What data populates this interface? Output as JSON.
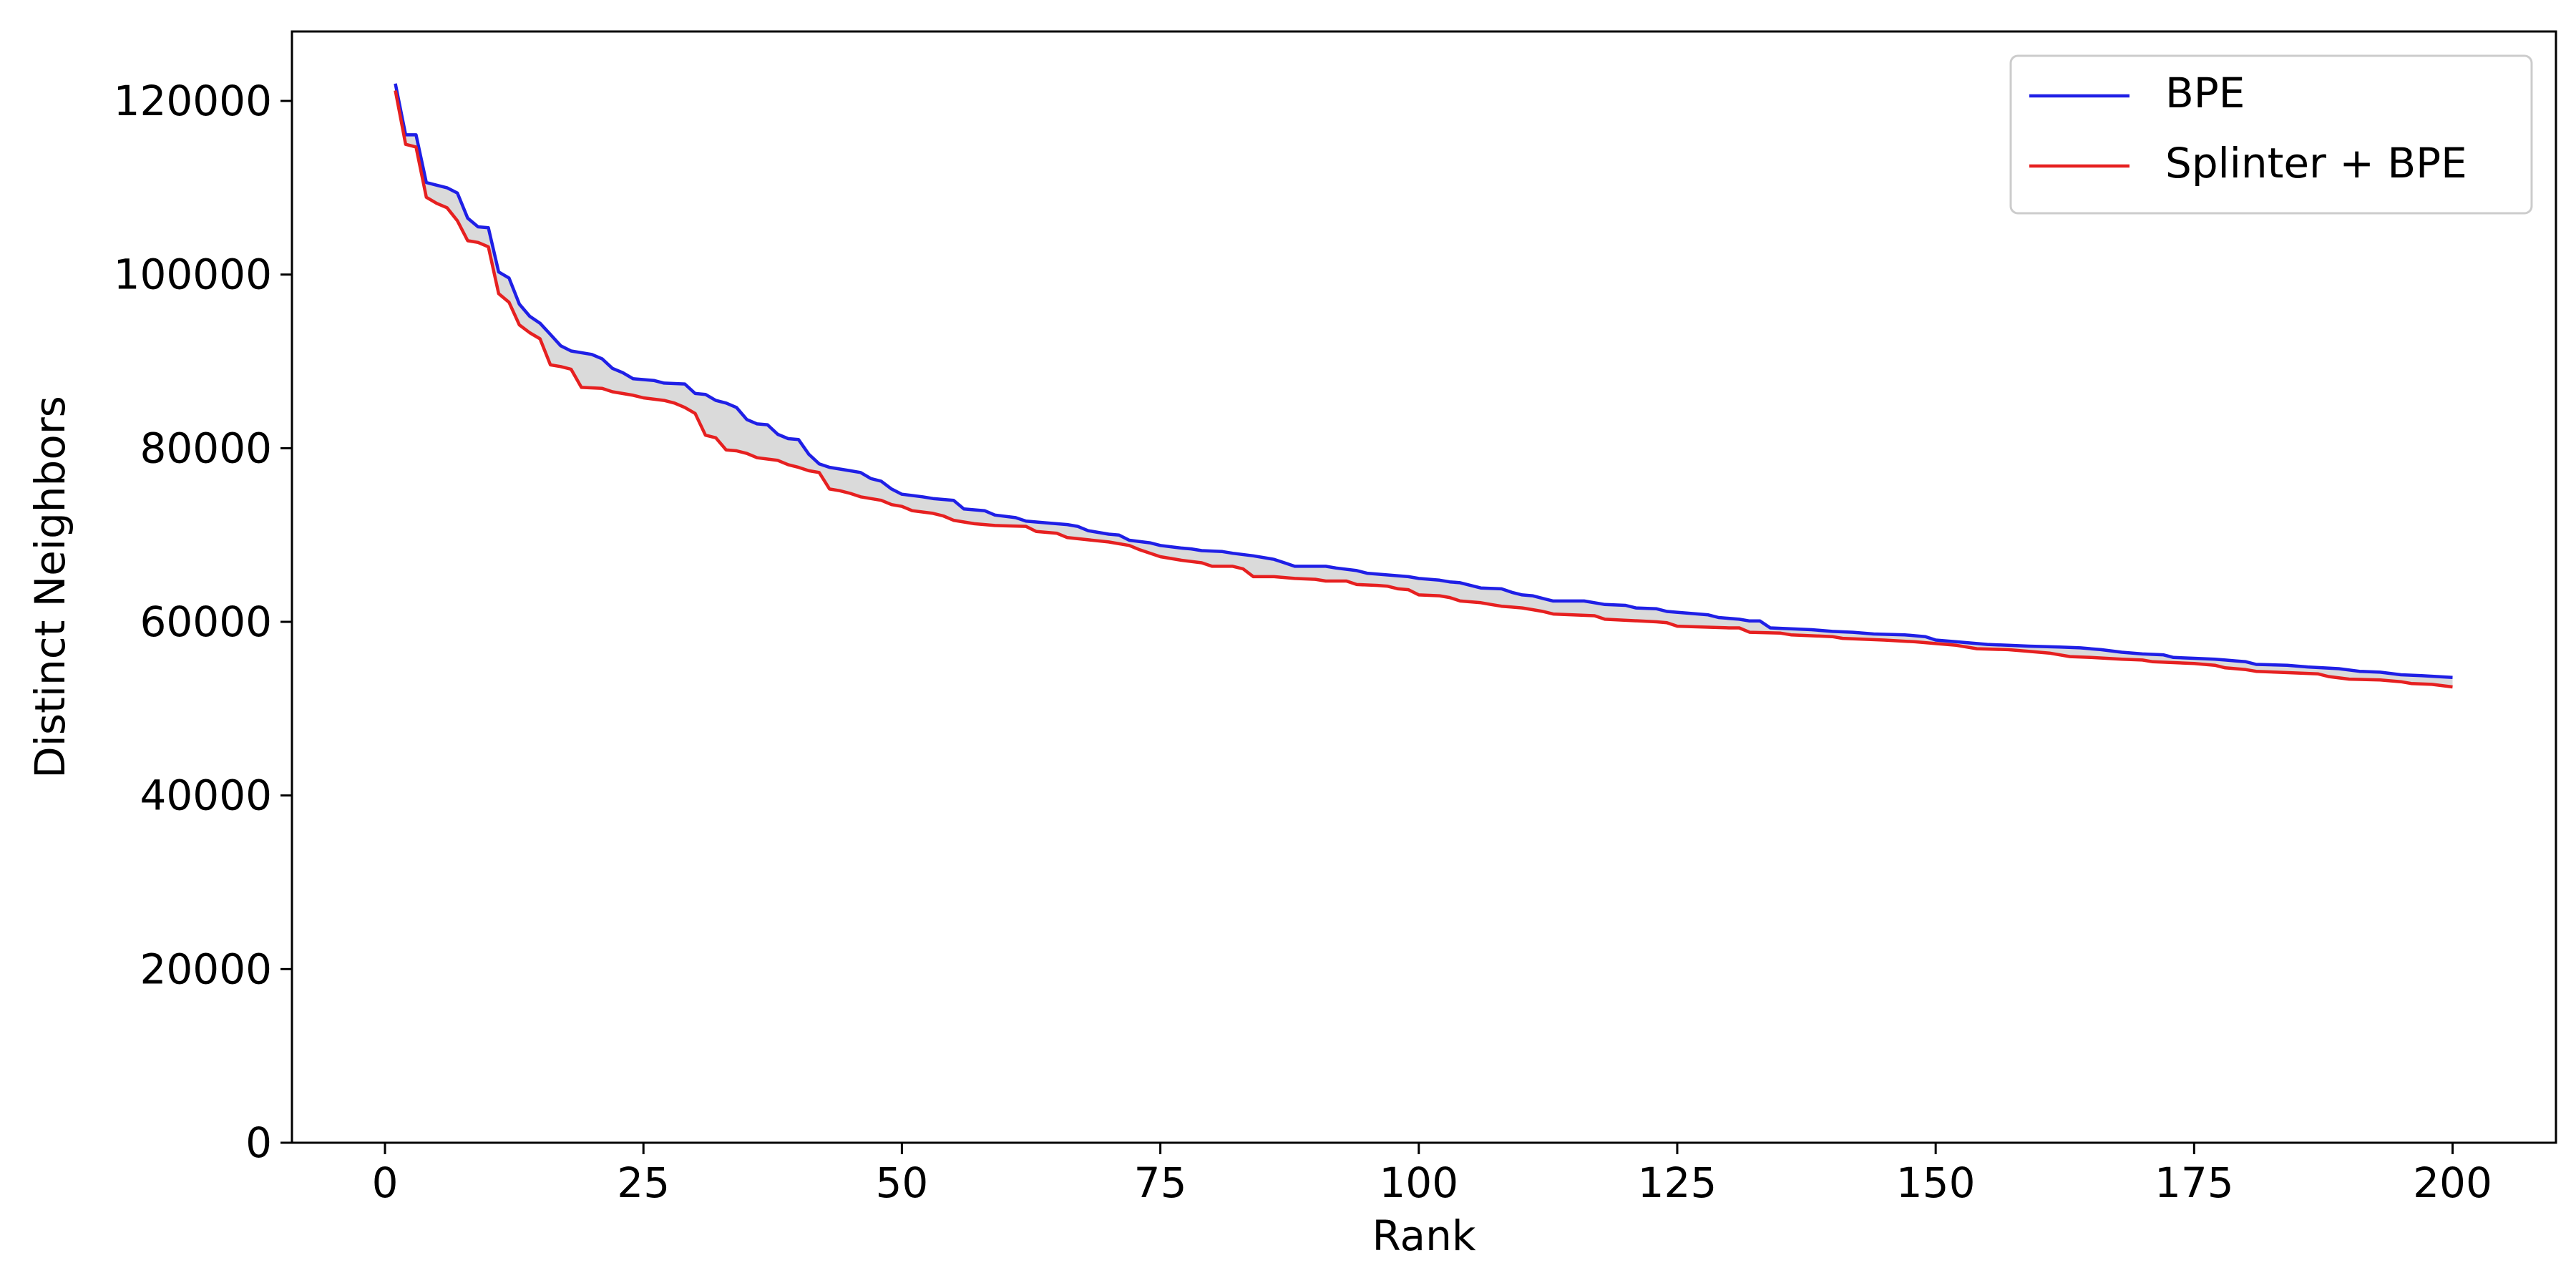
{
  "chart_data": {
    "type": "line",
    "xlabel": "Rank",
    "ylabel": "Distinct Neighbors",
    "xlim": [
      -9,
      210
    ],
    "ylim": [
      0,
      128000
    ],
    "x_ticks": [
      0,
      25,
      50,
      75,
      100,
      125,
      150,
      175,
      200
    ],
    "x_tick_labels": [
      "0",
      "25",
      "50",
      "75",
      "100",
      "125",
      "150",
      "175",
      "200"
    ],
    "y_ticks": [
      0,
      20000,
      40000,
      60000,
      80000,
      100000,
      120000
    ],
    "y_tick_labels": [
      "0",
      "20000",
      "40000",
      "60000",
      "80000",
      "100000",
      "120000"
    ],
    "grid": false,
    "legend_position": "top-right",
    "fill_between": {
      "color": "#d3d3d3",
      "between": [
        "BPE",
        "Splinter + BPE"
      ]
    },
    "series_points": [
      {
        "name": "BPE",
        "color": "#1f1fe6",
        "points": [
          [
            1,
            122000
          ],
          [
            2,
            116100
          ],
          [
            3,
            116100
          ],
          [
            4,
            110600
          ],
          [
            5,
            110300
          ],
          [
            6,
            110000
          ],
          [
            7,
            109400
          ],
          [
            8,
            106500
          ],
          [
            9,
            105500
          ],
          [
            10,
            105400
          ],
          [
            11,
            100300
          ],
          [
            12,
            99600
          ],
          [
            13,
            96600
          ],
          [
            14,
            95200
          ],
          [
            15,
            94400
          ],
          [
            16,
            93100
          ],
          [
            17,
            91800
          ],
          [
            18,
            91200
          ],
          [
            20,
            90800
          ],
          [
            21,
            90300
          ],
          [
            22,
            89200
          ],
          [
            23,
            88700
          ],
          [
            24,
            88000
          ],
          [
            26,
            87800
          ],
          [
            27,
            87500
          ],
          [
            29,
            87400
          ],
          [
            30,
            86300
          ],
          [
            31,
            86200
          ],
          [
            32,
            85500
          ],
          [
            33,
            85200
          ],
          [
            34,
            84700
          ],
          [
            35,
            83300
          ],
          [
            36,
            82800
          ],
          [
            37,
            82700
          ],
          [
            38,
            81600
          ],
          [
            39,
            81100
          ],
          [
            40,
            81000
          ],
          [
            41,
            79300
          ],
          [
            42,
            78200
          ],
          [
            43,
            77800
          ],
          [
            45,
            77400
          ],
          [
            46,
            77200
          ],
          [
            47,
            76500
          ],
          [
            48,
            76200
          ],
          [
            49,
            75300
          ],
          [
            50,
            74700
          ],
          [
            52,
            74400
          ],
          [
            53,
            74200
          ],
          [
            55,
            74000
          ],
          [
            56,
            73000
          ],
          [
            57,
            72900
          ],
          [
            58,
            72800
          ],
          [
            59,
            72300
          ],
          [
            61,
            72000
          ],
          [
            62,
            71600
          ],
          [
            64,
            71400
          ],
          [
            66,
            71200
          ],
          [
            67,
            71000
          ],
          [
            68,
            70500
          ],
          [
            70,
            70100
          ],
          [
            71,
            70000
          ],
          [
            72,
            69400
          ],
          [
            74,
            69100
          ],
          [
            75,
            68800
          ],
          [
            77,
            68500
          ],
          [
            78,
            68400
          ],
          [
            79,
            68200
          ],
          [
            81,
            68100
          ],
          [
            82,
            67900
          ],
          [
            84,
            67600
          ],
          [
            86,
            67200
          ],
          [
            87,
            66800
          ],
          [
            88,
            66400
          ],
          [
            91,
            66400
          ],
          [
            92,
            66200
          ],
          [
            94,
            65900
          ],
          [
            95,
            65600
          ],
          [
            97,
            65400
          ],
          [
            99,
            65200
          ],
          [
            100,
            65000
          ],
          [
            102,
            64800
          ],
          [
            103,
            64600
          ],
          [
            104,
            64500
          ],
          [
            105,
            64200
          ],
          [
            106,
            63900
          ],
          [
            108,
            63800
          ],
          [
            109,
            63400
          ],
          [
            110,
            63100
          ],
          [
            111,
            63000
          ],
          [
            112,
            62700
          ],
          [
            113,
            62400
          ],
          [
            116,
            62400
          ],
          [
            118,
            62000
          ],
          [
            120,
            61900
          ],
          [
            121,
            61600
          ],
          [
            123,
            61500
          ],
          [
            124,
            61200
          ],
          [
            126,
            61000
          ],
          [
            128,
            60800
          ],
          [
            129,
            60500
          ],
          [
            131,
            60300
          ],
          [
            132,
            60100
          ],
          [
            133,
            60100
          ],
          [
            134,
            59300
          ],
          [
            136,
            59200
          ],
          [
            138,
            59100
          ],
          [
            140,
            58900
          ],
          [
            142,
            58800
          ],
          [
            144,
            58600
          ],
          [
            147,
            58500
          ],
          [
            149,
            58300
          ],
          [
            150,
            57900
          ],
          [
            152,
            57700
          ],
          [
            153,
            57600
          ],
          [
            155,
            57400
          ],
          [
            157,
            57300
          ],
          [
            159,
            57200
          ],
          [
            162,
            57100
          ],
          [
            164,
            57000
          ],
          [
            166,
            56800
          ],
          [
            168,
            56500
          ],
          [
            170,
            56300
          ],
          [
            172,
            56200
          ],
          [
            173,
            55900
          ],
          [
            175,
            55800
          ],
          [
            177,
            55700
          ],
          [
            178,
            55600
          ],
          [
            179,
            55500
          ],
          [
            180,
            55400
          ],
          [
            181,
            55100
          ],
          [
            184,
            55000
          ],
          [
            186,
            54800
          ],
          [
            189,
            54600
          ],
          [
            191,
            54300
          ],
          [
            193,
            54200
          ],
          [
            195,
            53900
          ],
          [
            197,
            53800
          ],
          [
            200,
            53600
          ]
        ]
      },
      {
        "name": "Splinter + BPE",
        "color": "#e62020",
        "points": [
          [
            1,
            121200
          ],
          [
            2,
            115000
          ],
          [
            3,
            114700
          ],
          [
            4,
            108900
          ],
          [
            5,
            108200
          ],
          [
            6,
            107700
          ],
          [
            7,
            106200
          ],
          [
            8,
            103900
          ],
          [
            9,
            103700
          ],
          [
            10,
            103200
          ],
          [
            11,
            97800
          ],
          [
            12,
            96800
          ],
          [
            13,
            94200
          ],
          [
            14,
            93300
          ],
          [
            15,
            92600
          ],
          [
            16,
            89600
          ],
          [
            17,
            89400
          ],
          [
            18,
            89100
          ],
          [
            19,
            87000
          ],
          [
            21,
            86900
          ],
          [
            22,
            86500
          ],
          [
            24,
            86100
          ],
          [
            25,
            85800
          ],
          [
            27,
            85500
          ],
          [
            28,
            85200
          ],
          [
            29,
            84700
          ],
          [
            30,
            84000
          ],
          [
            31,
            81500
          ],
          [
            32,
            81200
          ],
          [
            33,
            79800
          ],
          [
            34,
            79700
          ],
          [
            35,
            79400
          ],
          [
            36,
            78900
          ],
          [
            38,
            78600
          ],
          [
            39,
            78100
          ],
          [
            40,
            77800
          ],
          [
            41,
            77400
          ],
          [
            42,
            77200
          ],
          [
            43,
            75300
          ],
          [
            44,
            75100
          ],
          [
            45,
            74800
          ],
          [
            46,
            74400
          ],
          [
            48,
            74000
          ],
          [
            49,
            73500
          ],
          [
            50,
            73300
          ],
          [
            51,
            72800
          ],
          [
            53,
            72500
          ],
          [
            54,
            72200
          ],
          [
            55,
            71700
          ],
          [
            56,
            71500
          ],
          [
            57,
            71300
          ],
          [
            59,
            71100
          ],
          [
            62,
            71000
          ],
          [
            63,
            70400
          ],
          [
            65,
            70200
          ],
          [
            66,
            69700
          ],
          [
            70,
            69200
          ],
          [
            72,
            68800
          ],
          [
            73,
            68300
          ],
          [
            75,
            67500
          ],
          [
            77,
            67100
          ],
          [
            79,
            66800
          ],
          [
            80,
            66400
          ],
          [
            82,
            66400
          ],
          [
            83,
            66100
          ],
          [
            84,
            65200
          ],
          [
            86,
            65200
          ],
          [
            88,
            65000
          ],
          [
            90,
            64900
          ],
          [
            91,
            64700
          ],
          [
            93,
            64700
          ],
          [
            94,
            64300
          ],
          [
            96,
            64200
          ],
          [
            97,
            64100
          ],
          [
            98,
            63800
          ],
          [
            99,
            63700
          ],
          [
            100,
            63100
          ],
          [
            102,
            63000
          ],
          [
            103,
            62800
          ],
          [
            104,
            62400
          ],
          [
            106,
            62200
          ],
          [
            107,
            62000
          ],
          [
            108,
            61800
          ],
          [
            109,
            61700
          ],
          [
            110,
            61600
          ],
          [
            111,
            61400
          ],
          [
            112,
            61200
          ],
          [
            113,
            60900
          ],
          [
            117,
            60700
          ],
          [
            118,
            60300
          ],
          [
            123,
            60000
          ],
          [
            124,
            59900
          ],
          [
            125,
            59500
          ],
          [
            130,
            59300
          ],
          [
            131,
            59300
          ],
          [
            132,
            58800
          ],
          [
            135,
            58700
          ],
          [
            136,
            58500
          ],
          [
            140,
            58300
          ],
          [
            141,
            58100
          ],
          [
            145,
            57900
          ],
          [
            148,
            57700
          ],
          [
            150,
            57500
          ],
          [
            152,
            57300
          ],
          [
            154,
            56900
          ],
          [
            157,
            56800
          ],
          [
            159,
            56600
          ],
          [
            161,
            56400
          ],
          [
            163,
            56000
          ],
          [
            165,
            55900
          ],
          [
            168,
            55700
          ],
          [
            170,
            55600
          ],
          [
            171,
            55400
          ],
          [
            175,
            55200
          ],
          [
            177,
            55000
          ],
          [
            178,
            54700
          ],
          [
            180,
            54500
          ],
          [
            181,
            54300
          ],
          [
            183,
            54200
          ],
          [
            187,
            54000
          ],
          [
            188,
            53700
          ],
          [
            190,
            53400
          ],
          [
            193,
            53300
          ],
          [
            195,
            53100
          ],
          [
            196,
            52900
          ],
          [
            198,
            52800
          ],
          [
            200,
            52500
          ]
        ]
      }
    ]
  }
}
